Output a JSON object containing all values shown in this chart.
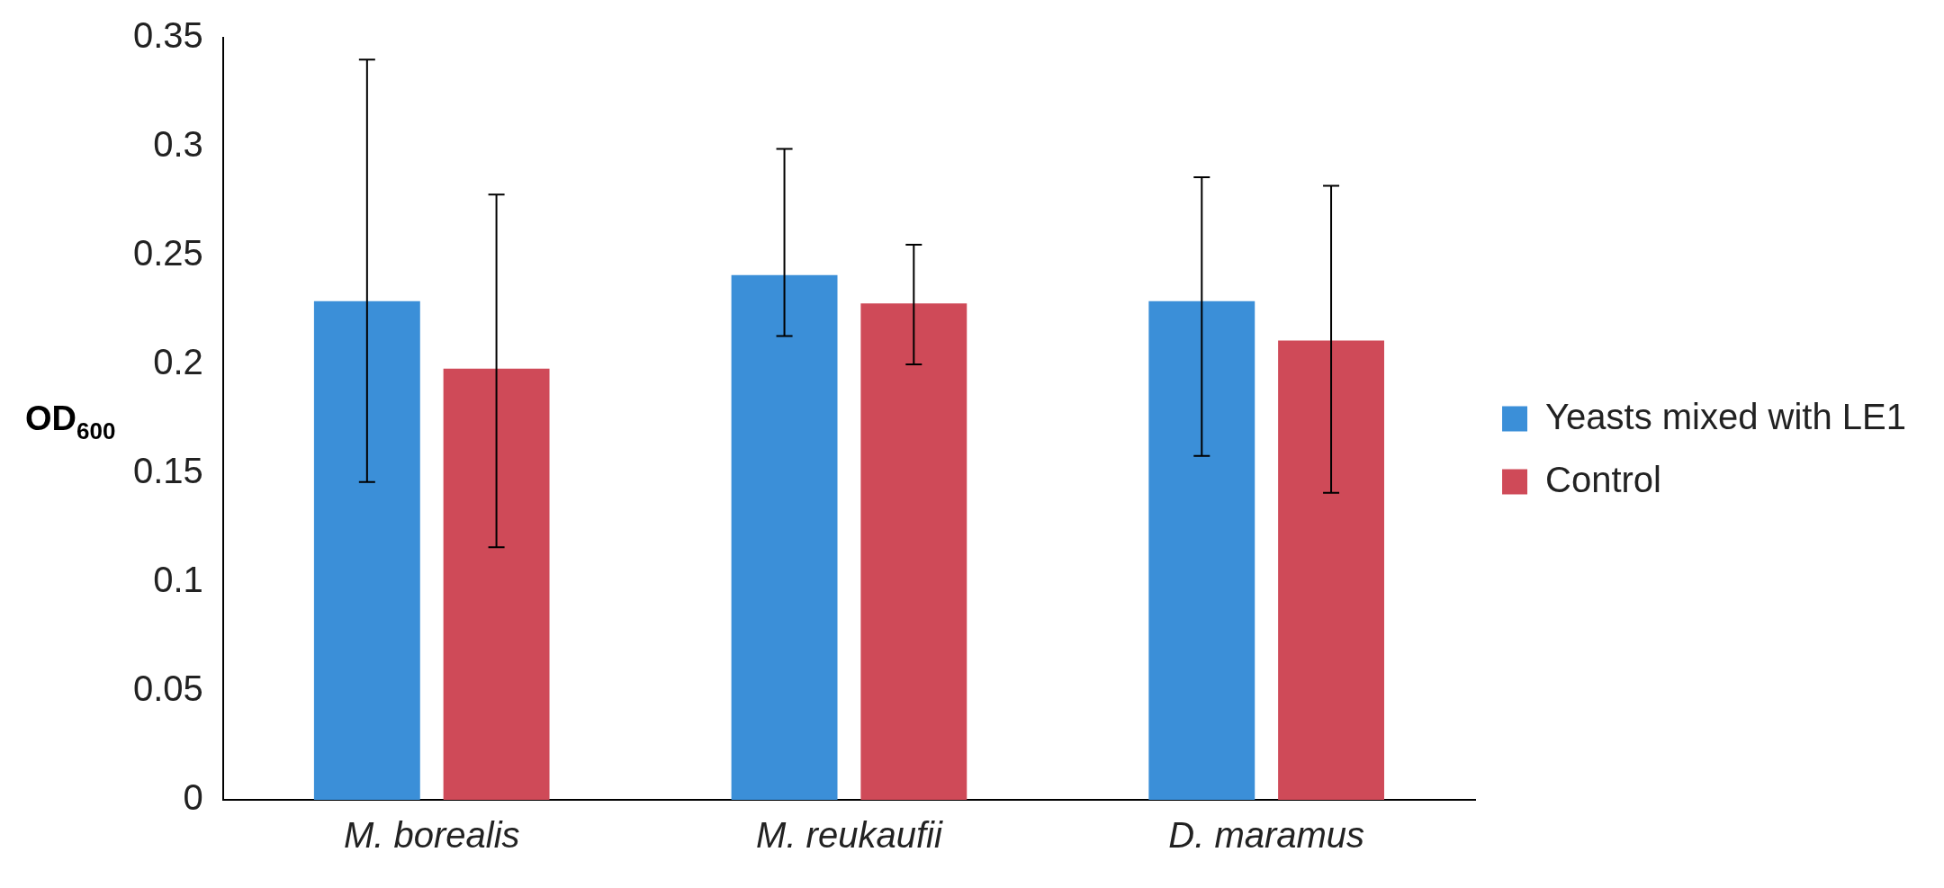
{
  "chart_data": {
    "type": "bar",
    "ylabel": "OD$_{600}$",
    "categories": [
      "M. borealis",
      "M. reukaufii",
      "D. maramus"
    ],
    "series": [
      {
        "name": "Yeasts mixed with LE1",
        "color": "#3b8fd8",
        "values": [
          0.229,
          0.241,
          0.229
        ],
        "errors": [
          [
            0.146,
            0.34
          ],
          [
            0.213,
            0.299
          ],
          [
            0.158,
            0.286
          ]
        ]
      },
      {
        "name": "Control",
        "color": "#cf4a58",
        "values": [
          0.198,
          0.228,
          0.211
        ],
        "errors": [
          [
            0.116,
            0.278
          ],
          [
            0.2,
            0.255
          ],
          [
            0.141,
            0.282
          ]
        ]
      }
    ],
    "ylim": [
      0,
      0.35
    ],
    "yticks": [
      0,
      0.05,
      0.1,
      0.15,
      0.2,
      0.25,
      0.3,
      0.35
    ],
    "grid": false,
    "legend": "right"
  }
}
